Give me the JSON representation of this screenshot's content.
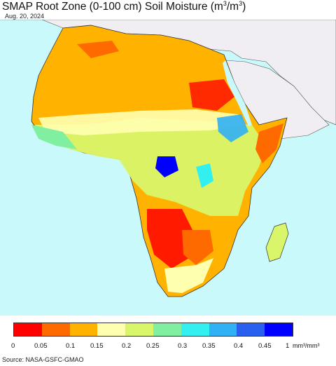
{
  "title": "SMAP Root Zone (0-100 cm) Soil Moisture (m",
  "title_sup1": "3",
  "title_mid": "/m",
  "title_sup2": "3",
  "title_end": ")",
  "date": "Aug. 20, 2024",
  "colorbar": {
    "colors": [
      "#ff0000",
      "#ff6a00",
      "#ffb300",
      "#ffffb0",
      "#d9f56a",
      "#80f0a0",
      "#33f0f0",
      "#30b0f5",
      "#2a60f0",
      "#0000ff"
    ],
    "ticks": [
      "0",
      "0.05",
      "0.1",
      "0.15",
      "0.2",
      "0.25",
      "0.3",
      "0.35",
      "0.4",
      "0.45",
      "1"
    ],
    "units": "mm³/mm³"
  },
  "source": "Source: NASA-GSFC-GMAO"
}
